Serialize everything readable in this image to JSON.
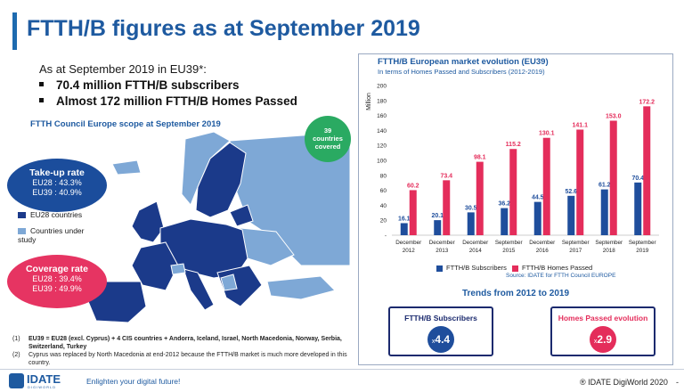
{
  "header": {
    "title": "FTTH/B figures as at September 2019"
  },
  "intro": {
    "line": "As at September 2019 in EU39*:",
    "bullets": [
      "70.4 million FTTH/B subscribers",
      "Almost 172 million FTTH/B Homes Passed"
    ]
  },
  "map_section": {
    "title": "FTTH Council Europe scope at September 2019",
    "countries_badge": [
      "39",
      "countries",
      "covered"
    ],
    "takeup": {
      "title": "Take-up rate",
      "eu28": "EU28 : 43.3%",
      "eu39": "EU39 : 40.9%"
    },
    "coverage": {
      "title": "Coverage rate",
      "eu28": "EU28 : 39.4%",
      "eu39": "EU39 : 49.9%"
    },
    "legend": [
      {
        "label": "EU28 countries",
        "color": "#1b3a8a"
      },
      {
        "label": "Countries under study",
        "color": "#7ea8d6"
      }
    ]
  },
  "notes": [
    {
      "key": "(1)",
      "text": "EU39 = EU28 (excl. Cyprus) + 4 CIS countries + Andorra, Iceland, Israel, North Macedonia, Norway, Serbia, Switzerland, Turkey"
    },
    {
      "key": "(2)",
      "text": "Cyprus was replaced by North Macedonia at end-2012 because the FTTH/B market is much more developed in this country."
    }
  ],
  "chart_data": {
    "type": "bar",
    "title": "FTTH/B European market evolution (EU39)",
    "subtitle": "In terms of Homes Passed and Subscribers (2012-2019)",
    "ylabel": "Million",
    "ylim": [
      0,
      200
    ],
    "yticks": [
      "200",
      "180",
      "160",
      "140",
      "120",
      "100",
      "80",
      "60",
      "40",
      "20",
      "-"
    ],
    "categories": [
      [
        "December",
        "2012"
      ],
      [
        "December",
        "2013"
      ],
      [
        "December",
        "2014"
      ],
      [
        "September",
        "2015"
      ],
      [
        "December",
        "2016"
      ],
      [
        "September",
        "2017"
      ],
      [
        "September",
        "2018"
      ],
      [
        "September",
        "2019"
      ]
    ],
    "series": [
      {
        "name": "FTTH/B Subscribers",
        "color": "#1f4e9c",
        "values": [
          16.1,
          20.1,
          30.5,
          36.2,
          44.5,
          52.6,
          61.2,
          70.4
        ],
        "labels": [
          "16.1",
          "20.1",
          "30.5",
          "36.2",
          "44.5",
          "52.6",
          "61.2",
          "70.4"
        ]
      },
      {
        "name": "FTTH/B Homes Passed",
        "color": "#e42d5b",
        "values": [
          60.2,
          73.4,
          98.1,
          115.2,
          130.1,
          141.1,
          153.0,
          172.2
        ],
        "labels": [
          "60.2",
          "73.4",
          "98.1",
          "115.2",
          "130.1",
          "141.1",
          "153.0",
          "172.2"
        ]
      }
    ],
    "source": "Source: IDATE for FTTH Council EUROPE"
  },
  "trends": {
    "title": "Trends from 2012 to 2019",
    "subscribers": {
      "label": "FTTH/B Subscribers",
      "prefix": "x",
      "value": "4.4",
      "color": "#1f4e9c"
    },
    "homes": {
      "label": "Homes Passed evolution",
      "prefix": "x",
      "value": "2.9",
      "color": "#e42d5b"
    }
  },
  "footer": {
    "logo": "IDATE",
    "logo_sub": "DIGIWORLD",
    "tagline": "Enlighten your digital future!",
    "copyright": "® IDATE DigiWorld 2020",
    "dash": "-"
  }
}
